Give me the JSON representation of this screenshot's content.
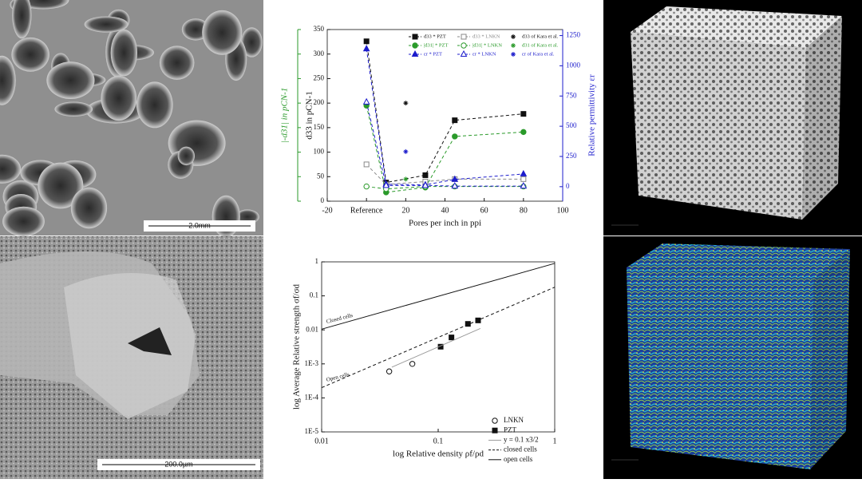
{
  "chart_data": [
    {
      "type": "line",
      "x_label": "Pores per inch in ppi",
      "y_label": "d33 in pCN-1",
      "y_label_outer": "|-d31| in pCN-1",
      "y2_label": "Relative permittivity εr",
      "xlim": [
        -20,
        100
      ],
      "xticks": [
        -20,
        {
          "value": 0,
          "label": "Reference"
        },
        20,
        40,
        60,
        80,
        100
      ],
      "ylim": [
        0,
        350
      ],
      "yticks": [
        0,
        50,
        100,
        150,
        200,
        250,
        300,
        350
      ],
      "y2lim": [
        -120,
        1300
      ],
      "y2ticks": [
        0,
        250,
        500,
        750,
        1000,
        1250
      ],
      "series": [
        {
          "name": "d33 * PZT",
          "color": "#111111",
          "marker": "square",
          "filled": true,
          "line": "dashed",
          "x": [
            0,
            10,
            30,
            45,
            80
          ],
          "values": [
            326,
            38,
            53,
            165,
            178
          ]
        },
        {
          "name": "d33 * LNKN",
          "color": "#888888",
          "marker": "square",
          "filled": false,
          "line": "dashed",
          "x": [
            0,
            10,
            30,
            45,
            80
          ],
          "values": [
            75,
            34,
            40,
            45,
            45
          ]
        },
        {
          "name": "d33 of Kara et al.",
          "color": "#111111",
          "marker": "star",
          "filled": true,
          "line": "none",
          "x": [
            20
          ],
          "values": [
            200
          ]
        },
        {
          "name": "|d31| * PZT",
          "color": "#2a9a2a",
          "marker": "circle",
          "filled": true,
          "line": "dashed",
          "x": [
            0,
            10,
            30,
            45,
            80
          ],
          "values": [
            195,
            18,
            28,
            132,
            141
          ]
        },
        {
          "name": "|d31| * LNKN",
          "color": "#2a9a2a",
          "marker": "circle",
          "filled": false,
          "line": "dashed",
          "x": [
            0,
            10,
            30,
            45,
            80
          ],
          "values": [
            30,
            25,
            30,
            30,
            30
          ]
        },
        {
          "name": "d31 of Kara et al.",
          "color": "#2a9a2a",
          "marker": "star",
          "filled": true,
          "line": "none",
          "x": [
            20
          ],
          "values": [
            45
          ]
        },
        {
          "name": "εr * PZT",
          "color": "#1c1ccc",
          "marker": "triangle",
          "filled": true,
          "line": "dashed",
          "axis": "y2",
          "x": [
            0,
            10,
            30,
            45,
            80
          ],
          "values": [
            1140,
            20,
            15,
            60,
            105
          ]
        },
        {
          "name": "εr * LNKN",
          "color": "#1c1ccc",
          "marker": "triangle",
          "filled": false,
          "line": "dashed",
          "axis": "y2",
          "x": [
            0,
            10,
            30,
            45,
            80
          ],
          "values": [
            700,
            10,
            10,
            5,
            5
          ]
        },
        {
          "name": "εr of Kara et al.",
          "color": "#1c1ccc",
          "marker": "star",
          "filled": true,
          "line": "none",
          "axis": "y2",
          "x": [
            20
          ],
          "values": [
            290
          ]
        }
      ]
    },
    {
      "type": "line",
      "x_label": "log Relative density ρf/ρd",
      "y_label": "log Average Relative strength σf/σd",
      "xscale": "log",
      "yscale": "log",
      "xlim": [
        0.01,
        1
      ],
      "xticks": [
        0.01,
        0.1,
        1
      ],
      "ylim": [
        1e-05,
        1
      ],
      "yticks": [
        {
          "value": 1e-05,
          "label": "1E-5"
        },
        {
          "value": 0.0001,
          "label": "1E-4"
        },
        {
          "value": 0.001,
          "label": "1E-3"
        },
        0.01,
        0.1,
        1
      ],
      "annotations": [
        {
          "text": "Closed cells",
          "x": 0.011,
          "y": 0.017
        },
        {
          "text": "Open cells",
          "x": 0.011,
          "y": 0.00033
        }
      ],
      "series": [
        {
          "name": "LNKN",
          "color": "#111111",
          "marker": "circle",
          "filled": false,
          "line": "none",
          "x": [
            0.038,
            0.06
          ],
          "values": [
            0.0006,
            0.001
          ]
        },
        {
          "name": "PZT",
          "color": "#111111",
          "marker": "square",
          "filled": true,
          "line": "none",
          "x": [
            0.105,
            0.13,
            0.18,
            0.22
          ],
          "values": [
            0.0032,
            0.006,
            0.015,
            0.019
          ]
        },
        {
          "name": "y = 0.1 x3/2",
          "color": "#999999",
          "marker": "none",
          "line": "solid",
          "x": [
            0.04,
            0.23
          ],
          "values": [
            0.0008,
            0.011
          ]
        },
        {
          "name": "closed cells",
          "color": "#111111",
          "marker": "none",
          "line": "dashed",
          "x": [
            0.01,
            1
          ],
          "values": [
            0.0002,
            0.18
          ]
        },
        {
          "name": "open cells",
          "color": "#111111",
          "marker": "none",
          "line": "solid",
          "x": [
            0.01,
            1
          ],
          "values": [
            0.0105,
            0.9
          ]
        }
      ]
    }
  ],
  "images": [
    {
      "scale_bar": "2.0mm"
    },
    {
      "scale_bar": "200.0µm"
    }
  ]
}
